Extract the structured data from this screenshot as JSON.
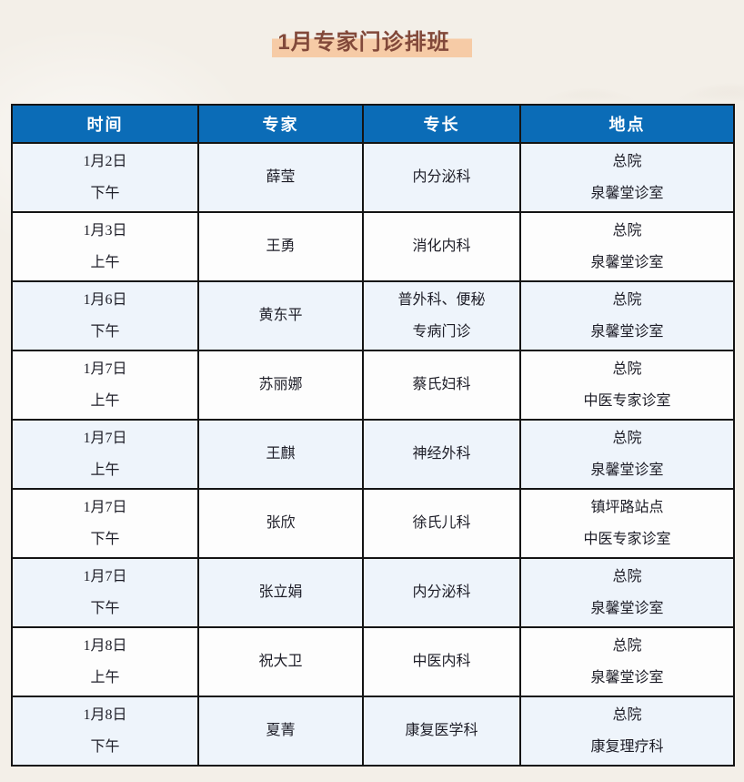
{
  "page": {
    "title": "1月专家门诊排班"
  },
  "colors": {
    "page_bg": "#f3efe8",
    "title_text": "#82493a",
    "title_highlight": "#f6cba6",
    "header_bg": "#0b6cb7",
    "header_text": "#ffffff",
    "row_alt_bg": "#eef4fb",
    "border": "#141414",
    "cell_text": "#1d1d27"
  },
  "table": {
    "headers": [
      "时间",
      "专家",
      "专长",
      "地点"
    ],
    "rows": [
      {
        "time": [
          "1月2日",
          "下午"
        ],
        "expert": "薛莹",
        "specialty": [
          "内分泌科"
        ],
        "location": [
          "总院",
          "泉馨堂诊室"
        ]
      },
      {
        "time": [
          "1月3日",
          "上午"
        ],
        "expert": "王勇",
        "specialty": [
          "消化内科"
        ],
        "location": [
          "总院",
          "泉馨堂诊室"
        ]
      },
      {
        "time": [
          "1月6日",
          "下午"
        ],
        "expert": "黄东平",
        "specialty": [
          "普外科、便秘",
          "专病门诊"
        ],
        "location": [
          "总院",
          "泉馨堂诊室"
        ]
      },
      {
        "time": [
          "1月7日",
          "上午"
        ],
        "expert": "苏丽娜",
        "specialty": [
          "蔡氏妇科"
        ],
        "location": [
          "总院",
          "中医专家诊室"
        ]
      },
      {
        "time": [
          "1月7日",
          "上午"
        ],
        "expert": "王麒",
        "specialty": [
          "神经外科"
        ],
        "location": [
          "总院",
          "泉馨堂诊室"
        ]
      },
      {
        "time": [
          "1月7日",
          "下午"
        ],
        "expert": "张欣",
        "specialty": [
          "徐氏儿科"
        ],
        "location": [
          "镇坪路站点",
          "中医专家诊室"
        ]
      },
      {
        "time": [
          "1月7日",
          "下午"
        ],
        "expert": "张立娟",
        "specialty": [
          "内分泌科"
        ],
        "location": [
          "总院",
          "泉馨堂诊室"
        ]
      },
      {
        "time": [
          "1月8日",
          "上午"
        ],
        "expert": "祝大卫",
        "specialty": [
          "中医内科"
        ],
        "location": [
          "总院",
          "泉馨堂诊室"
        ]
      },
      {
        "time": [
          "1月8日",
          "下午"
        ],
        "expert": "夏菁",
        "specialty": [
          "康复医学科"
        ],
        "location": [
          "总院",
          "康复理疗科"
        ]
      }
    ]
  }
}
